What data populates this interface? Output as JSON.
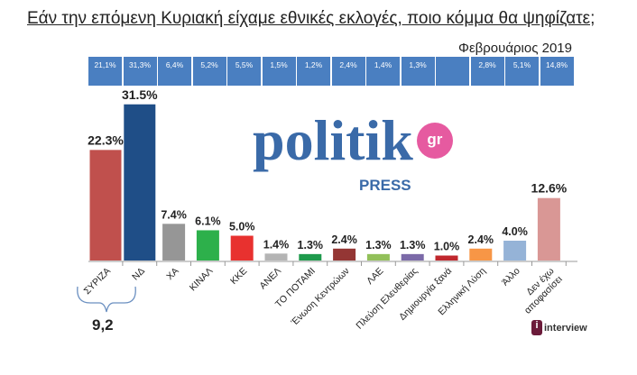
{
  "header": {
    "title": "Εάν την επόμενη Κυριακή είχαμε εθνικές εκλογές, ποιο κόμμα θα ψηφίζατε;",
    "date": "Φεβρουάριος 2019"
  },
  "previous_poll": [
    "21,1%",
    "31,3%",
    "6,4%",
    "5,2%",
    "5,5%",
    "1,5%",
    "1,2%",
    "2,4%",
    "1,4%",
    "1,3%",
    "",
    "2,8%",
    "5,1%",
    "14,8%"
  ],
  "logo": {
    "main": "politik",
    "badge": "gr",
    "sub": "PRESS"
  },
  "brace_label": "9,2",
  "pollster": "interview",
  "chart_data": {
    "type": "bar",
    "title": "Εάν την επόμενη Κυριακή είχαμε εθνικές εκλογές, ποιο κόμμα θα ψηφίζατε;",
    "categories": [
      "ΣΥΡΙΖΑ",
      "ΝΔ",
      "ΧΑ",
      "ΚΙΝΑΛ",
      "ΚΚΕ",
      "ΑΝΕΛ",
      "ΤΟ ΠΟΤΑΜΙ",
      "Ένωση Κεντρώων",
      "ΛΑΕ",
      "Πλεύση Ελευθερίας",
      "Δημιουργία ξανά",
      "Ελληνική Λύση",
      "Άλλο",
      "Δεν έχω αποφασίσει"
    ],
    "values": [
      22.3,
      31.5,
      7.4,
      6.1,
      5.0,
      1.4,
      1.3,
      2.4,
      1.3,
      1.3,
      1.0,
      2.4,
      4.0,
      12.6
    ],
    "labels": [
      "22.3%",
      "31.5%",
      "7.4%",
      "6.1%",
      "5.0%",
      "1.4%",
      "1.3%",
      "2.4%",
      "1.3%",
      "1.3%",
      "1.0%",
      "2.4%",
      "4.0%",
      "12.6%"
    ],
    "colors": [
      "#c0504d",
      "#1f4e87",
      "#969696",
      "#2db04b",
      "#e8312f",
      "#b4b4b4",
      "#1e9a4c",
      "#943634",
      "#92c05a",
      "#7b6aa8",
      "#c0272d",
      "#f79646",
      "#95b3d7",
      "#d99795"
    ],
    "ylim": [
      0,
      35
    ]
  }
}
